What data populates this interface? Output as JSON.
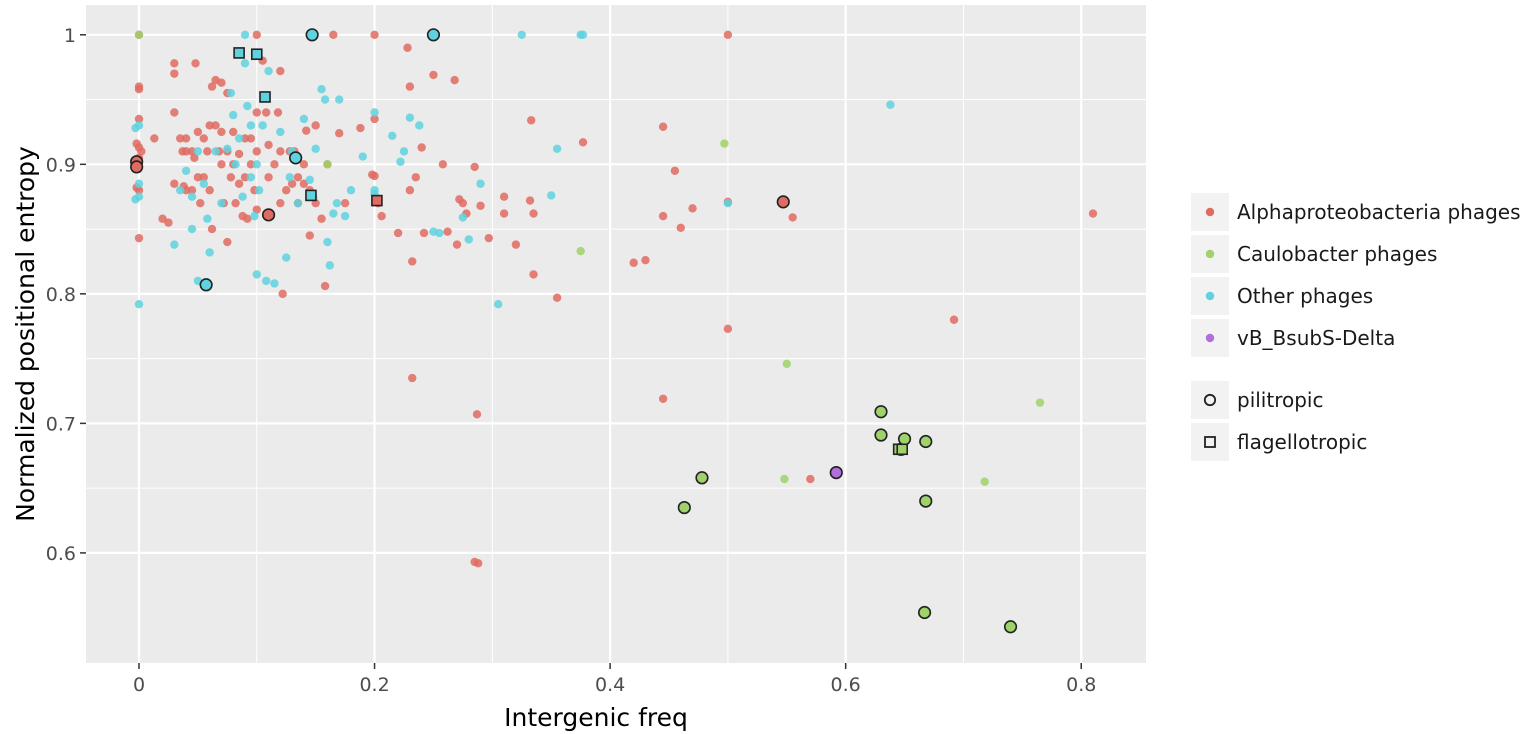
{
  "chart_data": {
    "type": "scatter",
    "xlabel": "Intergenic freq",
    "ylabel": "Normalized positional entropy",
    "xlim": [
      -0.045,
      0.855
    ],
    "ylim": [
      0.515,
      1.023
    ],
    "x_ticks": [
      0,
      0.2,
      0.4,
      0.6,
      0.8
    ],
    "x_tick_labels": [
      "0",
      "0.2",
      "0.4",
      "0.6",
      "0.8"
    ],
    "y_ticks": [
      0.6,
      0.7,
      0.8,
      0.9,
      1.0
    ],
    "y_tick_labels": [
      "0.6",
      "0.7",
      "0.8",
      "0.9",
      "1"
    ],
    "grid": true,
    "legend_position": "right",
    "colors": {
      "Alphaproteobacteria phages": "#e06b62",
      "Caulobacter phages": "#9fd26a",
      "Other phages": "#5ed2de",
      "vB_BsubS-Delta": "#b06fdc"
    },
    "legend": {
      "color_entries": [
        "Alphaproteobacteria phages",
        "Caulobacter phages",
        "Other phages",
        "vB_BsubS-Delta"
      ],
      "shape_entries": [
        {
          "label": "pilitropic",
          "shape": "circle"
        },
        {
          "label": "flagellotropic",
          "shape": "square"
        }
      ]
    },
    "series": [
      {
        "name": "Alphaproteobacteria phages",
        "points": [
          [
            0,
            1.0
          ],
          [
            0,
            0.96
          ],
          [
            0,
            0.958
          ],
          [
            0,
            0.935
          ],
          [
            -0.002,
            0.916
          ],
          [
            0,
            0.913
          ],
          [
            0.002,
            0.91
          ],
          [
            0,
            0.905
          ],
          [
            -0.002,
            0.882
          ],
          [
            0,
            0.88
          ],
          [
            0,
            0.843
          ],
          [
            0.013,
            0.92
          ],
          [
            0.02,
            0.858
          ],
          [
            0.025,
            0.855
          ],
          [
            0.03,
            0.978
          ],
          [
            0.03,
            0.97
          ],
          [
            0.03,
            0.94
          ],
          [
            0.03,
            0.885
          ],
          [
            0.035,
            0.92
          ],
          [
            0.037,
            0.91
          ],
          [
            0.038,
            0.883
          ],
          [
            0.04,
            0.92
          ],
          [
            0.04,
            0.91
          ],
          [
            0.04,
            0.88
          ],
          [
            0.045,
            0.91
          ],
          [
            0.045,
            0.88
          ],
          [
            0.047,
            0.905
          ],
          [
            0.048,
            0.978
          ],
          [
            0.05,
            0.925
          ],
          [
            0.05,
            0.89
          ],
          [
            0.052,
            0.87
          ],
          [
            0.055,
            0.92
          ],
          [
            0.055,
            0.89
          ],
          [
            0.058,
            0.91
          ],
          [
            0.06,
            0.93
          ],
          [
            0.06,
            0.88
          ],
          [
            0.062,
            0.96
          ],
          [
            0.062,
            0.85
          ],
          [
            0.065,
            0.965
          ],
          [
            0.065,
            0.93
          ],
          [
            0.068,
            0.91
          ],
          [
            0.07,
            0.963
          ],
          [
            0.07,
            0.925
          ],
          [
            0.07,
            0.9
          ],
          [
            0.072,
            0.87
          ],
          [
            0.075,
            0.955
          ],
          [
            0.075,
            0.91
          ],
          [
            0.075,
            0.84
          ],
          [
            0.078,
            0.89
          ],
          [
            0.08,
            0.925
          ],
          [
            0.08,
            0.9
          ],
          [
            0.082,
            0.87
          ],
          [
            0.085,
            0.908
          ],
          [
            0.085,
            0.885
          ],
          [
            0.088,
            0.86
          ],
          [
            0.09,
            0.92
          ],
          [
            0.09,
            0.89
          ],
          [
            0.092,
            0.858
          ],
          [
            0.095,
            0.92
          ],
          [
            0.095,
            0.9
          ],
          [
            0.098,
            0.88
          ],
          [
            0.1,
            1.0
          ],
          [
            0.1,
            0.94
          ],
          [
            0.1,
            0.91
          ],
          [
            0.1,
            0.865
          ],
          [
            0.105,
            0.98
          ],
          [
            0.108,
            0.94
          ],
          [
            0.11,
            0.915
          ],
          [
            0.11,
            0.89
          ],
          [
            0.112,
            0.86
          ],
          [
            0.115,
            0.9
          ],
          [
            0.118,
            0.94
          ],
          [
            0.12,
            0.972
          ],
          [
            0.12,
            0.91
          ],
          [
            0.12,
            0.87
          ],
          [
            0.122,
            0.8
          ],
          [
            0.125,
            0.88
          ],
          [
            0.128,
            0.91
          ],
          [
            0.13,
            0.885
          ],
          [
            0.132,
            0.91
          ],
          [
            0.135,
            0.89
          ],
          [
            0.135,
            0.87
          ],
          [
            0.14,
            0.9
          ],
          [
            0.14,
            0.885
          ],
          [
            0.142,
            0.926
          ],
          [
            0.145,
            0.88
          ],
          [
            0.145,
            0.845
          ],
          [
            0.15,
            0.93
          ],
          [
            0.15,
            0.87
          ],
          [
            0.155,
            0.858
          ],
          [
            0.158,
            0.806
          ],
          [
            0.16,
            0.9
          ],
          [
            0.165,
            1.0
          ],
          [
            0.17,
            0.924
          ],
          [
            0.175,
            0.87
          ],
          [
            0.188,
            0.928
          ],
          [
            0.198,
            0.892
          ],
          [
            0.2,
            1.0
          ],
          [
            0.2,
            0.935
          ],
          [
            0.2,
            0.891
          ],
          [
            0.203,
            0.87
          ],
          [
            0.206,
            0.86
          ],
          [
            0.22,
            0.847
          ],
          [
            0.228,
            0.99
          ],
          [
            0.23,
            0.96
          ],
          [
            0.23,
            0.88
          ],
          [
            0.232,
            0.825
          ],
          [
            0.232,
            0.735
          ],
          [
            0.235,
            0.89
          ],
          [
            0.24,
            0.913
          ],
          [
            0.242,
            0.847
          ],
          [
            0.25,
            0.969
          ],
          [
            0.258,
            0.9
          ],
          [
            0.262,
            0.848
          ],
          [
            0.268,
            0.965
          ],
          [
            0.27,
            0.838
          ],
          [
            0.272,
            0.873
          ],
          [
            0.275,
            0.87
          ],
          [
            0.278,
            0.862
          ],
          [
            0.285,
            0.898
          ],
          [
            0.285,
            0.593
          ],
          [
            0.287,
            0.707
          ],
          [
            0.288,
            0.592
          ],
          [
            0.29,
            0.868
          ],
          [
            0.297,
            0.843
          ],
          [
            0.31,
            0.875
          ],
          [
            0.31,
            0.862
          ],
          [
            0.32,
            0.838
          ],
          [
            0.332,
            0.872
          ],
          [
            0.333,
            0.934
          ],
          [
            0.335,
            0.862
          ],
          [
            0.335,
            0.815
          ],
          [
            0.355,
            0.797
          ],
          [
            0.377,
            0.917
          ],
          [
            0.42,
            0.824
          ],
          [
            0.43,
            0.826
          ],
          [
            0.445,
            0.929
          ],
          [
            0.445,
            0.719
          ],
          [
            0.445,
            0.86
          ],
          [
            0.455,
            0.895
          ],
          [
            0.46,
            0.851
          ],
          [
            0.47,
            0.866
          ],
          [
            0.5,
            1.0
          ],
          [
            0.5,
            0.773
          ],
          [
            0.5,
            0.871
          ],
          [
            0.555,
            0.859
          ],
          [
            0.57,
            0.657
          ],
          [
            0.692,
            0.78
          ],
          [
            0.81,
            0.862
          ]
        ]
      },
      {
        "name": "Caulobacter phages",
        "points": [
          [
            0,
            1.0
          ],
          [
            0.16,
            0.9
          ],
          [
            0.375,
            0.833
          ],
          [
            0.497,
            0.916
          ],
          [
            0.548,
            0.657
          ],
          [
            0.55,
            0.746
          ],
          [
            0.718,
            0.655
          ],
          [
            0.765,
            0.716
          ]
        ]
      },
      {
        "name": "Other phages",
        "points": [
          [
            0,
            0.792
          ],
          [
            -0.003,
            0.873
          ],
          [
            0,
            0.875
          ],
          [
            0,
            0.885
          ],
          [
            -0.003,
            0.928
          ],
          [
            0,
            0.93
          ],
          [
            0.03,
            0.838
          ],
          [
            0.035,
            0.88
          ],
          [
            0.04,
            0.895
          ],
          [
            0.045,
            0.85
          ],
          [
            0.045,
            0.875
          ],
          [
            0.05,
            0.91
          ],
          [
            0.05,
            0.81
          ],
          [
            0.055,
            0.885
          ],
          [
            0.058,
            0.858
          ],
          [
            0.06,
            0.832
          ],
          [
            0.065,
            0.91
          ],
          [
            0.07,
            0.87
          ],
          [
            0.075,
            0.912
          ],
          [
            0.078,
            0.955
          ],
          [
            0.08,
            0.938
          ],
          [
            0.082,
            0.9
          ],
          [
            0.085,
            0.92
          ],
          [
            0.088,
            0.875
          ],
          [
            0.09,
            0.978
          ],
          [
            0.09,
            1.0
          ],
          [
            0.092,
            0.945
          ],
          [
            0.095,
            0.93
          ],
          [
            0.095,
            0.89
          ],
          [
            0.098,
            0.86
          ],
          [
            0.1,
            0.9
          ],
          [
            0.1,
            0.815
          ],
          [
            0.102,
            0.88
          ],
          [
            0.105,
            0.93
          ],
          [
            0.108,
            0.81
          ],
          [
            0.11,
            0.972
          ],
          [
            0.112,
            0.86
          ],
          [
            0.115,
            0.808
          ],
          [
            0.12,
            0.925
          ],
          [
            0.125,
            0.828
          ],
          [
            0.128,
            0.89
          ],
          [
            0.13,
            0.91
          ],
          [
            0.135,
            0.87
          ],
          [
            0.14,
            0.935
          ],
          [
            0.145,
            0.888
          ],
          [
            0.148,
            0.875
          ],
          [
            0.15,
            0.912
          ],
          [
            0.155,
            0.958
          ],
          [
            0.158,
            0.95
          ],
          [
            0.16,
            0.84
          ],
          [
            0.162,
            0.822
          ],
          [
            0.165,
            0.862
          ],
          [
            0.168,
            0.87
          ],
          [
            0.17,
            0.95
          ],
          [
            0.175,
            0.86
          ],
          [
            0.18,
            0.88
          ],
          [
            0.19,
            0.906
          ],
          [
            0.2,
            0.94
          ],
          [
            0.2,
            0.88
          ],
          [
            0.2,
            0.877
          ],
          [
            0.215,
            0.922
          ],
          [
            0.222,
            0.902
          ],
          [
            0.225,
            0.91
          ],
          [
            0.23,
            0.936
          ],
          [
            0.238,
            0.93
          ],
          [
            0.25,
            0.848
          ],
          [
            0.255,
            0.847
          ],
          [
            0.275,
            0.859
          ],
          [
            0.28,
            0.842
          ],
          [
            0.29,
            0.885
          ],
          [
            0.305,
            0.792
          ],
          [
            0.325,
            1.0
          ],
          [
            0.35,
            0.876
          ],
          [
            0.355,
            0.912
          ],
          [
            0.375,
            1.0
          ],
          [
            0.377,
            1.0
          ],
          [
            0.5,
            0.87
          ],
          [
            0.638,
            0.946
          ]
        ]
      },
      {
        "name": "vB_BsubS-Delta",
        "points": [
          [
            0.592,
            0.662
          ]
        ]
      }
    ],
    "outlined_points": {
      "pilitropic": [
        {
          "series": "Alphaproteobacteria phages",
          "x": -0.002,
          "y": 0.902
        },
        {
          "series": "Alphaproteobacteria phages",
          "x": -0.002,
          "y": 0.898
        },
        {
          "series": "Alphaproteobacteria phages",
          "x": 0.11,
          "y": 0.861
        },
        {
          "series": "Alphaproteobacteria phages",
          "x": 0.547,
          "y": 0.871
        },
        {
          "series": "Other phages",
          "x": 0.057,
          "y": 0.807
        },
        {
          "series": "Other phages",
          "x": 0.133,
          "y": 0.905
        },
        {
          "series": "Other phages",
          "x": 0.147,
          "y": 1.0
        },
        {
          "series": "Other phages",
          "x": 0.25,
          "y": 1.0
        },
        {
          "series": "Caulobacter phages",
          "x": 0.463,
          "y": 0.635
        },
        {
          "series": "Caulobacter phages",
          "x": 0.478,
          "y": 0.658
        },
        {
          "series": "Caulobacter phages",
          "x": 0.63,
          "y": 0.709
        },
        {
          "series": "Caulobacter phages",
          "x": 0.63,
          "y": 0.691
        },
        {
          "series": "Caulobacter phages",
          "x": 0.647,
          "y": 0.68
        },
        {
          "series": "Caulobacter phages",
          "x": 0.65,
          "y": 0.688
        },
        {
          "series": "Caulobacter phages",
          "x": 0.668,
          "y": 0.686
        },
        {
          "series": "Caulobacter phages",
          "x": 0.668,
          "y": 0.64
        },
        {
          "series": "Caulobacter phages",
          "x": 0.667,
          "y": 0.554
        },
        {
          "series": "Caulobacter phages",
          "x": 0.74,
          "y": 0.543
        },
        {
          "series": "vB_BsubS-Delta",
          "x": 0.592,
          "y": 0.662
        }
      ],
      "flagellotropic": [
        {
          "series": "Other phages",
          "x": 0.085,
          "y": 0.986
        },
        {
          "series": "Other phages",
          "x": 0.1,
          "y": 0.985
        },
        {
          "series": "Other phages",
          "x": 0.107,
          "y": 0.952
        },
        {
          "series": "Other phages",
          "x": 0.146,
          "y": 0.876
        },
        {
          "series": "Alphaproteobacteria phages",
          "x": 0.202,
          "y": 0.872
        },
        {
          "series": "Caulobacter phages",
          "x": 0.645,
          "y": 0.68
        },
        {
          "series": "Caulobacter phages",
          "x": 0.648,
          "y": 0.68
        }
      ]
    }
  }
}
